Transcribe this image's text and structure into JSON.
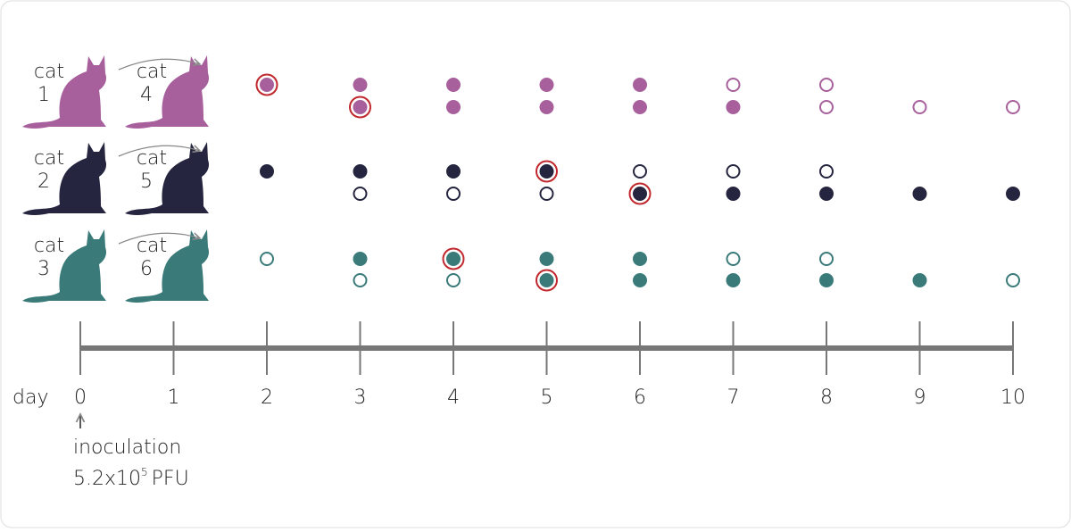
{
  "day_label": "day",
  "days": [
    "0",
    "1",
    "2",
    "3",
    "4",
    "5",
    "6",
    "7",
    "8",
    "9",
    "10"
  ],
  "groups": [
    {
      "color": "#a8609c",
      "cats": [
        {
          "word": "cat",
          "number": "1"
        },
        {
          "word": "cat",
          "number": "4"
        }
      ],
      "rows": [
        [
          null,
          null,
          "ringed",
          "filled",
          "filled",
          "filled",
          "filled",
          "open",
          "open",
          null,
          null
        ],
        [
          null,
          null,
          null,
          "ringed",
          "filled",
          "filled",
          "filled",
          "filled",
          "open",
          "open",
          "open"
        ]
      ]
    },
    {
      "color": "#25253f",
      "cats": [
        {
          "word": "cat",
          "number": "2"
        },
        {
          "word": "cat",
          "number": "5"
        }
      ],
      "rows": [
        [
          null,
          null,
          "filled",
          "filled",
          "filled",
          "ringed",
          "open",
          "open",
          "open",
          null,
          null
        ],
        [
          null,
          null,
          null,
          "open",
          "open",
          "open",
          "ringed",
          "filled",
          "filled",
          "filled",
          "filled"
        ]
      ]
    },
    {
      "color": "#3a7b7a",
      "cats": [
        {
          "word": "cat",
          "number": "3"
        },
        {
          "word": "cat",
          "number": "6"
        }
      ],
      "rows": [
        [
          null,
          null,
          "open",
          "filled",
          "ringed",
          "filled",
          "filled",
          "open",
          "open",
          null,
          null
        ],
        [
          null,
          null,
          null,
          "open",
          "open",
          "ringed",
          "filled",
          "filled",
          "filled",
          "filled",
          "open"
        ]
      ]
    }
  ],
  "inoculation": {
    "label": "inoculation",
    "dose": "5.2x10",
    "exponent": "5",
    "unit": "PFU"
  }
}
